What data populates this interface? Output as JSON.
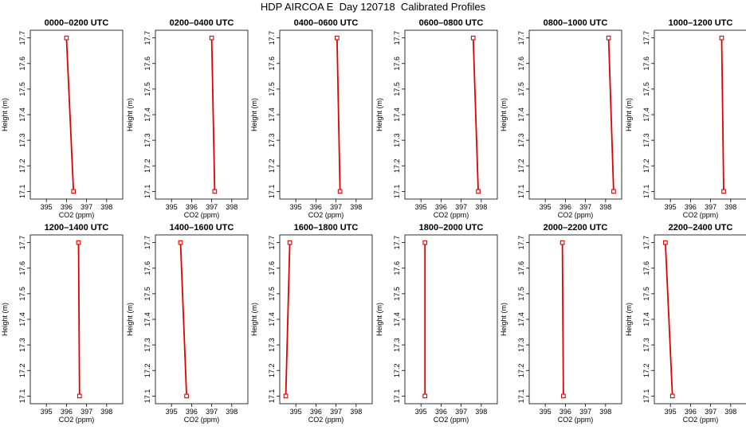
{
  "title": "HDP AIRCOA E  Day 120718  Calibrated Profiles",
  "colors": {
    "profile": "#e00000",
    "axis": "#000000",
    "background": "#ffffff"
  },
  "chart_data": [
    {
      "type": "line",
      "title": "0000–0200 UTC",
      "xlabel": "CO2 (ppm)",
      "ylabel": "Height (m)",
      "xlim": [
        394.2,
        398.8
      ],
      "ylim": [
        17.07,
        17.73
      ],
      "xticks": [
        395,
        396,
        397,
        398
      ],
      "yticks": [
        17.1,
        17.2,
        17.3,
        17.4,
        17.5,
        17.6,
        17.7
      ],
      "grid": false,
      "series": [
        {
          "x": [
            396.0,
            396.35
          ],
          "y": [
            17.7,
            17.1
          ]
        }
      ]
    },
    {
      "type": "line",
      "title": "0200–0400 UTC",
      "xlabel": "CO2 (ppm)",
      "ylabel": "Height (m)",
      "xlim": [
        394.2,
        398.8
      ],
      "ylim": [
        17.07,
        17.73
      ],
      "xticks": [
        395,
        396,
        397,
        398
      ],
      "yticks": [
        17.1,
        17.2,
        17.3,
        17.4,
        17.5,
        17.6,
        17.7
      ],
      "grid": false,
      "series": [
        {
          "x": [
            397.0,
            397.15
          ],
          "y": [
            17.7,
            17.1
          ]
        }
      ]
    },
    {
      "type": "line",
      "title": "0400–0600 UTC",
      "xlabel": "CO2 (ppm)",
      "ylabel": "Height (m)",
      "xlim": [
        394.2,
        398.8
      ],
      "ylim": [
        17.07,
        17.73
      ],
      "xticks": [
        395,
        396,
        397,
        398
      ],
      "yticks": [
        17.1,
        17.2,
        17.3,
        17.4,
        17.5,
        17.6,
        17.7
      ],
      "grid": false,
      "series": [
        {
          "x": [
            397.05,
            397.2
          ],
          "y": [
            17.7,
            17.1
          ]
        }
      ]
    },
    {
      "type": "line",
      "title": "0600–0800 UTC",
      "xlabel": "CO2 (ppm)",
      "ylabel": "Height (m)",
      "xlim": [
        394.2,
        398.8
      ],
      "ylim": [
        17.07,
        17.73
      ],
      "xticks": [
        395,
        396,
        397,
        398
      ],
      "yticks": [
        17.1,
        17.2,
        17.3,
        17.4,
        17.5,
        17.6,
        17.7
      ],
      "grid": false,
      "series": [
        {
          "x": [
            397.6,
            397.85
          ],
          "y": [
            17.7,
            17.1
          ]
        }
      ]
    },
    {
      "type": "line",
      "title": "0800–1000 UTC",
      "xlabel": "CO2 (ppm)",
      "ylabel": "Height (m)",
      "xlim": [
        394.2,
        398.8
      ],
      "ylim": [
        17.07,
        17.73
      ],
      "xticks": [
        395,
        396,
        397,
        398
      ],
      "yticks": [
        17.1,
        17.2,
        17.3,
        17.4,
        17.5,
        17.6,
        17.7
      ],
      "grid": false,
      "series": [
        {
          "x": [
            398.15,
            398.4
          ],
          "y": [
            17.7,
            17.1
          ]
        }
      ]
    },
    {
      "type": "line",
      "title": "1000–1200 UTC",
      "xlabel": "CO2 (ppm)",
      "ylabel": "Height (m)",
      "xlim": [
        394.2,
        398.8
      ],
      "ylim": [
        17.07,
        17.73
      ],
      "xticks": [
        395,
        396,
        397,
        398
      ],
      "yticks": [
        17.1,
        17.2,
        17.3,
        17.4,
        17.5,
        17.6,
        17.7
      ],
      "grid": false,
      "series": [
        {
          "x": [
            397.55,
            397.65
          ],
          "y": [
            17.7,
            17.1
          ]
        }
      ]
    },
    {
      "type": "line",
      "title": "1200–1400 UTC",
      "xlabel": "CO2 (ppm)",
      "ylabel": "Height (m)",
      "xlim": [
        394.2,
        398.8
      ],
      "ylim": [
        17.07,
        17.73
      ],
      "xticks": [
        395,
        396,
        397,
        398
      ],
      "yticks": [
        17.1,
        17.2,
        17.3,
        17.4,
        17.5,
        17.6,
        17.7
      ],
      "grid": false,
      "series": [
        {
          "x": [
            396.6,
            396.65
          ],
          "y": [
            17.7,
            17.1
          ]
        }
      ]
    },
    {
      "type": "line",
      "title": "1400–1600 UTC",
      "xlabel": "CO2 (ppm)",
      "ylabel": "Height (m)",
      "xlim": [
        394.2,
        398.8
      ],
      "ylim": [
        17.07,
        17.73
      ],
      "xticks": [
        395,
        396,
        397,
        398
      ],
      "yticks": [
        17.1,
        17.2,
        17.3,
        17.4,
        17.5,
        17.6,
        17.7
      ],
      "grid": false,
      "series": [
        {
          "x": [
            395.45,
            395.75
          ],
          "y": [
            17.7,
            17.1
          ]
        }
      ]
    },
    {
      "type": "line",
      "title": "1600–1800 UTC",
      "xlabel": "CO2 (ppm)",
      "ylabel": "Height (m)",
      "xlim": [
        394.2,
        398.8
      ],
      "ylim": [
        17.07,
        17.73
      ],
      "xticks": [
        395,
        396,
        397,
        398
      ],
      "yticks": [
        17.1,
        17.2,
        17.3,
        17.4,
        17.5,
        17.6,
        17.7
      ],
      "grid": false,
      "series": [
        {
          "x": [
            394.7,
            394.5
          ],
          "y": [
            17.7,
            17.1
          ]
        }
      ]
    },
    {
      "type": "line",
      "title": "1800–2000 UTC",
      "xlabel": "CO2 (ppm)",
      "ylabel": "Height (m)",
      "xlim": [
        394.2,
        398.8
      ],
      "ylim": [
        17.07,
        17.73
      ],
      "xticks": [
        395,
        396,
        397,
        398
      ],
      "yticks": [
        17.1,
        17.2,
        17.3,
        17.4,
        17.5,
        17.6,
        17.7
      ],
      "grid": false,
      "series": [
        {
          "x": [
            395.2,
            395.2
          ],
          "y": [
            17.7,
            17.1
          ]
        }
      ]
    },
    {
      "type": "line",
      "title": "2000–2200 UTC",
      "xlabel": "CO2 (ppm)",
      "ylabel": "Height (m)",
      "xlim": [
        394.2,
        398.8
      ],
      "ylim": [
        17.07,
        17.73
      ],
      "xticks": [
        395,
        396,
        397,
        398
      ],
      "yticks": [
        17.1,
        17.2,
        17.3,
        17.4,
        17.5,
        17.6,
        17.7
      ],
      "grid": false,
      "series": [
        {
          "x": [
            395.85,
            395.9
          ],
          "y": [
            17.7,
            17.1
          ]
        }
      ]
    },
    {
      "type": "line",
      "title": "2200–2400 UTC",
      "xlabel": "CO2 (ppm)",
      "ylabel": "Height (m)",
      "xlim": [
        394.2,
        398.8
      ],
      "ylim": [
        17.07,
        17.73
      ],
      "xticks": [
        395,
        396,
        397,
        398
      ],
      "yticks": [
        17.1,
        17.2,
        17.3,
        17.4,
        17.5,
        17.6,
        17.7
      ],
      "grid": false,
      "series": [
        {
          "x": [
            394.75,
            395.1
          ],
          "y": [
            17.7,
            17.1
          ]
        }
      ]
    }
  ]
}
